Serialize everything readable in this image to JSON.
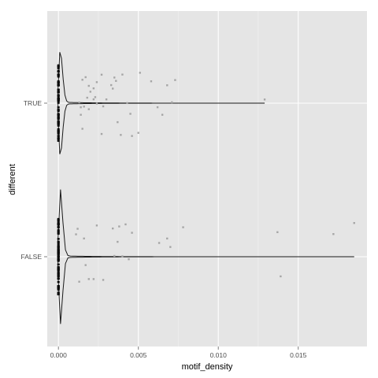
{
  "chart_data": {
    "type": "violin+jitter",
    "xlabel": "motif_density",
    "ylabel": "different",
    "xlim": [
      -0.0007,
      0.0193
    ],
    "x_ticks": [
      0.0,
      0.005,
      0.01,
      0.015
    ],
    "x_tick_labels": [
      "0.000",
      "0.005",
      "0.010",
      "0.015"
    ],
    "categories": [
      "FALSE",
      "TRUE"
    ],
    "grid": true,
    "background": "#e5e5e5",
    "colors": {
      "panel": "#e5e5e5",
      "grid_major": "#ffffff",
      "grid_minor": "#f2f2f2",
      "outline": "#1a1a1a",
      "points": "#a6a6a6"
    },
    "violins": [
      {
        "category": "TRUE",
        "max": 0.0129,
        "peak_halfwidth_frac": 0.34,
        "mode_value": 0.0001
      },
      {
        "category": "FALSE",
        "max": 0.0185,
        "peak_halfwidth_frac": 0.44,
        "mode_value": 0.0001
      }
    ],
    "points": [
      {
        "category": "TRUE",
        "values": [
          0.0013,
          0.0014,
          0.0017,
          0.0019,
          0.0022,
          0.0024,
          0.0027,
          0.0015,
          0.0019,
          0.0023,
          0.0034,
          0.0037,
          0.0045,
          0.004,
          0.0043,
          0.0068,
          0.0065,
          0.0073,
          0.0062,
          0.0071,
          0.0058,
          0.0051,
          0.005,
          0.0039,
          0.0035,
          0.003,
          0.0027,
          0.0024,
          0.0018,
          0.0016,
          0.0014,
          0.0022,
          0.0036,
          0.0046,
          0.0129,
          0.0033,
          0.0028,
          0.002,
          0.0015
        ]
      },
      {
        "category": "FALSE",
        "values": [
          0.0013,
          0.0016,
          0.0019,
          0.0011,
          0.0024,
          0.0034,
          0.0042,
          0.0044,
          0.0022,
          0.0028,
          0.0046,
          0.004,
          0.0038,
          0.0037,
          0.0035,
          0.0078,
          0.007,
          0.0068,
          0.0063,
          0.0139,
          0.0137,
          0.0172,
          0.0185,
          0.0017,
          0.0012
        ]
      }
    ]
  }
}
